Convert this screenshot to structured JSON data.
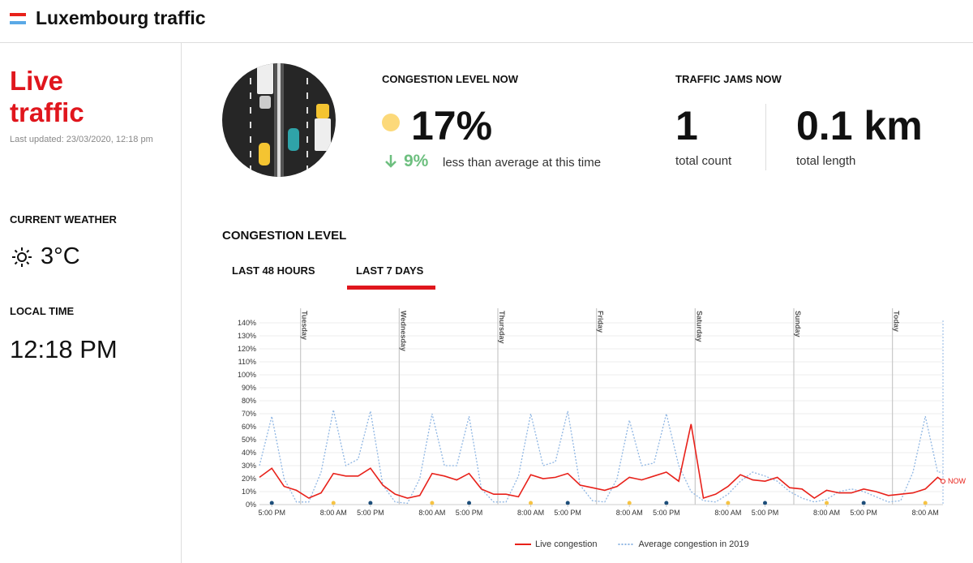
{
  "header": {
    "title": "Luxembourg traffic"
  },
  "sidebar": {
    "headline": "Live traffic",
    "updated": "Last updated: 23/03/2020, 12:18 pm",
    "weather_title": "CURRENT WEATHER",
    "temperature": "3°C",
    "time_title": "LOCAL TIME",
    "time": "12:18 PM"
  },
  "stats": {
    "congestion_title": "CONGESTION LEVEL NOW",
    "congestion": "17%",
    "difference": "9%",
    "difference_text": "less than average at this time",
    "jams_title": "TRAFFIC JAMS NOW",
    "jam_count": "1",
    "jam_count_label": "total count",
    "jam_length": "0.1 km",
    "jam_length_label": "total length"
  },
  "section_title": "CONGESTION LEVEL",
  "tabs": [
    "LAST 48 HOURS",
    "LAST 7 DAYS"
  ],
  "chart_data": {
    "type": "line",
    "x": [
      -10,
      -7,
      -4,
      -1,
      2,
      5,
      8,
      11,
      14,
      17,
      20,
      23,
      26,
      29,
      32,
      35,
      38,
      41,
      44,
      47,
      50,
      53,
      56,
      59,
      62,
      65,
      68,
      71,
      74,
      77,
      80,
      83,
      86,
      89,
      92,
      95,
      98,
      101,
      104,
      107,
      110,
      113,
      116,
      119,
      122,
      125,
      128,
      131,
      134,
      137,
      140,
      143,
      146,
      149,
      152,
      155,
      156.3
    ],
    "series": [
      {
        "name": "Live congestion",
        "color": "#e8211a",
        "style": "solid",
        "values": [
          21,
          28,
          14,
          11,
          5,
          9,
          24,
          22,
          22,
          28,
          15,
          8,
          5,
          7,
          24,
          22,
          19,
          24,
          12,
          8,
          8,
          6,
          23,
          20,
          21,
          24,
          15,
          13,
          11,
          14,
          21,
          19,
          22,
          25,
          18,
          62,
          5,
          8,
          14,
          23,
          19,
          18,
          21,
          13,
          12,
          5,
          11,
          9,
          9,
          12,
          10,
          7,
          8,
          9,
          12,
          21,
          18
        ]
      },
      {
        "name": "Average congestion in 2019",
        "color": "#8fb6e3",
        "style": "dotted",
        "values": [
          30,
          68,
          20,
          2,
          2,
          25,
          73,
          30,
          35,
          72,
          15,
          2,
          1,
          20,
          70,
          30,
          30,
          68,
          12,
          2,
          2,
          22,
          70,
          30,
          33,
          72,
          15,
          3,
          2,
          20,
          65,
          30,
          32,
          70,
          30,
          10,
          3,
          2,
          8,
          18,
          25,
          22,
          18,
          10,
          5,
          2,
          4,
          10,
          12,
          10,
          6,
          2,
          3,
          25,
          68,
          25,
          25
        ]
      }
    ],
    "xlim": [
      -10,
      156.3
    ],
    "xticks": [
      {
        "value": -7,
        "label": "5:00 PM"
      },
      {
        "value": 8,
        "label": "8:00 AM"
      },
      {
        "value": 17,
        "label": "5:00 PM"
      },
      {
        "value": 32,
        "label": "8:00 AM"
      },
      {
        "value": 41,
        "label": "5:00 PM"
      },
      {
        "value": 56,
        "label": "8:00 AM"
      },
      {
        "value": 65,
        "label": "5:00 PM"
      },
      {
        "value": 80,
        "label": "8:00 AM"
      },
      {
        "value": 89,
        "label": "5:00 PM"
      },
      {
        "value": 104,
        "label": "8:00 AM"
      },
      {
        "value": 113,
        "label": "5:00 PM"
      },
      {
        "value": 128,
        "label": "8:00 AM"
      },
      {
        "value": 137,
        "label": "5:00 PM"
      },
      {
        "value": 152,
        "label": "8:00 AM"
      }
    ],
    "day_markers": [
      {
        "value": 0,
        "label": "Tuesday"
      },
      {
        "value": 24,
        "label": "Wednesday"
      },
      {
        "value": 48,
        "label": "Thursday"
      },
      {
        "value": 72,
        "label": "Friday"
      },
      {
        "value": 96,
        "label": "Saturday"
      },
      {
        "value": 120,
        "label": "Sunday"
      },
      {
        "value": 144,
        "label": "Today"
      }
    ],
    "ylim": [
      0,
      140
    ],
    "yticks": [
      {
        "value": 0,
        "label": "0%"
      },
      {
        "value": 10,
        "label": "10%"
      },
      {
        "value": 20,
        "label": "20%"
      },
      {
        "value": 30,
        "label": "30%"
      },
      {
        "value": 40,
        "label": "40%"
      },
      {
        "value": 50,
        "label": "50%"
      },
      {
        "value": 60,
        "label": "60%"
      },
      {
        "value": 70,
        "label": "70%"
      },
      {
        "value": 80,
        "label": "80%"
      },
      {
        "value": 90,
        "label": "90%"
      },
      {
        "value": 100,
        "label": "100%"
      },
      {
        "value": 110,
        "label": "110%"
      },
      {
        "value": 120,
        "label": "120%"
      },
      {
        "value": 130,
        "label": "130%"
      },
      {
        "value": 140,
        "label": "140%"
      }
    ],
    "grid": true,
    "now_label": "NOW",
    "legend": "bottom"
  }
}
